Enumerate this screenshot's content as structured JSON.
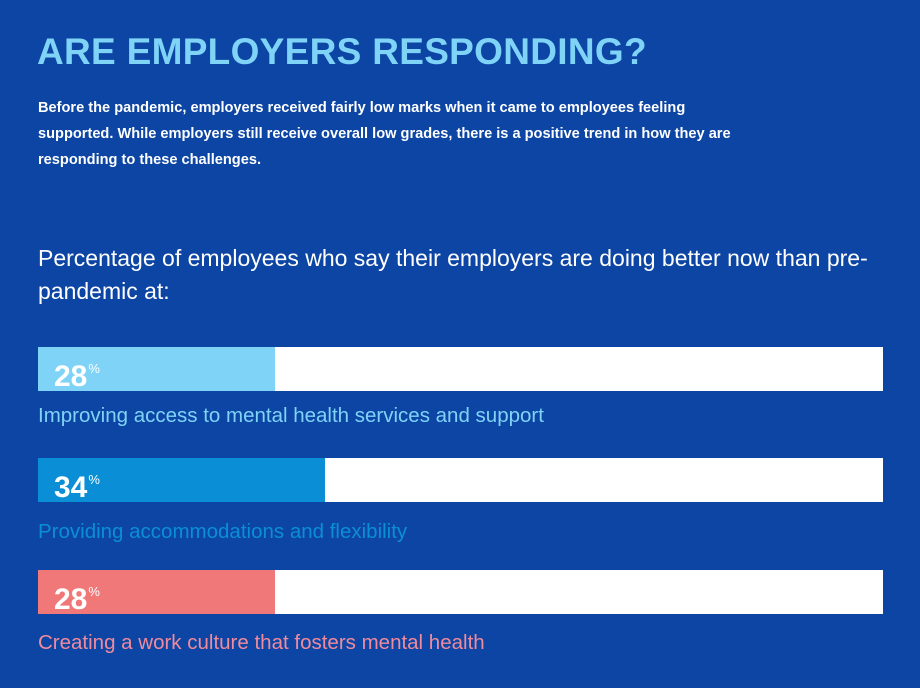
{
  "title": "ARE EMPLOYERS RESPONDING?",
  "intro": "Before the pandemic, employers received fairly low marks when it came to employees feeling supported. While employers still receive overall low grades, there is a positive trend in how they are responding to these challenges.",
  "colors": {
    "background": "#0c45a3",
    "title": "#7fd3f7",
    "track": "#ffffff"
  },
  "chart_data": {
    "type": "bar",
    "orientation": "horizontal",
    "title": "Percentage of employees who say their employers are doing better now than pre-pandemic at:",
    "xlim": [
      0,
      100
    ],
    "grid": false,
    "unit": "%",
    "categories": [
      "Improving access to mental health services and support",
      "Providing accommodations and flexibility",
      "Creating a work culture that fosters mental health"
    ],
    "values": [
      28,
      34,
      28
    ],
    "value_labels": [
      "28",
      "34",
      "28"
    ],
    "colors": [
      "#7fd3f7",
      "#0a8fd6",
      "#f07878"
    ],
    "label_colors": [
      "#7fd3f7",
      "#0a8fd6",
      "#f08a9c"
    ]
  }
}
